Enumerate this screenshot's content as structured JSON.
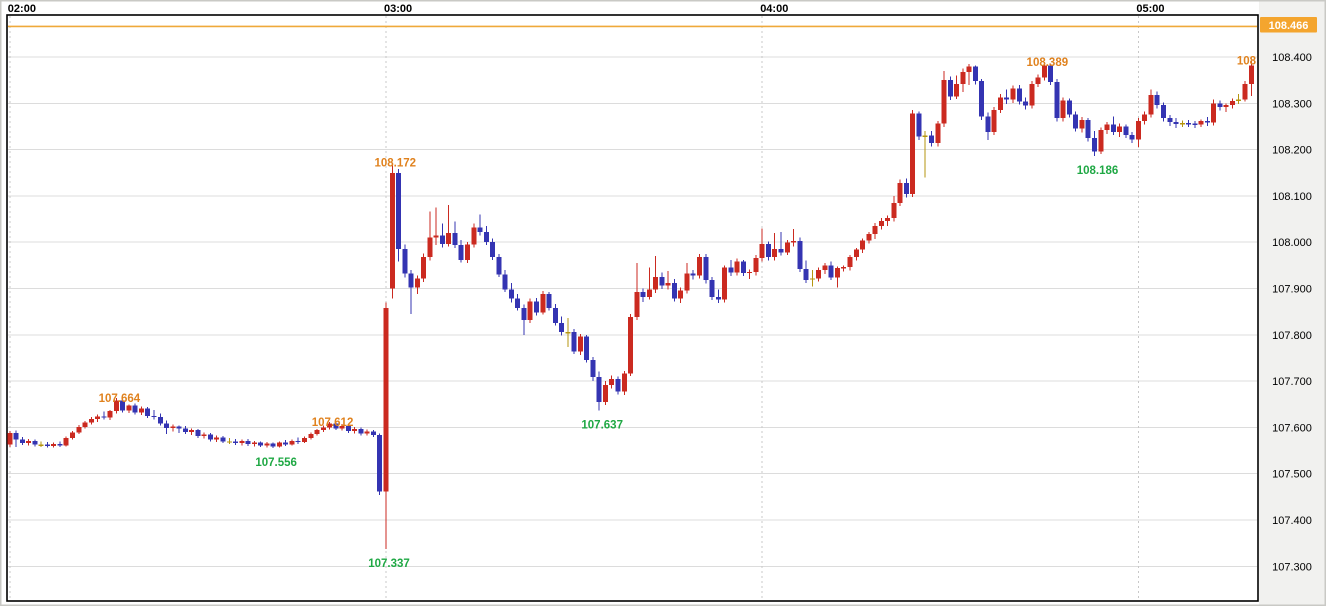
{
  "chart": {
    "current_price_label": "108.466",
    "clipped_label": "108"
  },
  "chart_data": {
    "type": "candlestick",
    "title": "",
    "xlabel": "",
    "ylabel": "",
    "x_axis": {
      "unit": "minutes_per_candle",
      "minutes_per_candle": 1,
      "labels": [
        {
          "t": 0,
          "text": "02:00"
        },
        {
          "t": 60,
          "text": "03:00"
        },
        {
          "t": 120,
          "text": "04:00"
        },
        {
          "t": 180,
          "text": "05:00"
        }
      ]
    },
    "y_axis": {
      "ticks": [
        "108.400",
        "108.300",
        "108.200",
        "108.100",
        "108.000",
        "107.900",
        "107.800",
        "107.700",
        "107.600",
        "107.500",
        "107.400",
        "107.300"
      ],
      "tick_values": [
        108.4,
        108.3,
        108.2,
        108.1,
        108.0,
        107.9,
        107.8,
        107.7,
        107.6,
        107.5,
        107.4,
        107.3
      ],
      "range": [
        107.25,
        108.48
      ]
    },
    "price_line": {
      "value": 108.466,
      "label": "108.466"
    },
    "annotations": [
      {
        "text": "107.664",
        "t": 17,
        "price": 107.664,
        "side": "high"
      },
      {
        "text": "107.556",
        "t": 42,
        "price": 107.556,
        "side": "low"
      },
      {
        "text": "107.612",
        "t": 51,
        "price": 107.612,
        "side": "high"
      },
      {
        "text": "107.337",
        "t": 60,
        "price": 107.337,
        "side": "low"
      },
      {
        "text": "108.172",
        "t": 61,
        "price": 108.172,
        "side": "high"
      },
      {
        "text": "107.637",
        "t": 94,
        "price": 107.637,
        "side": "low"
      },
      {
        "text": "108.389",
        "t": 165,
        "price": 108.389,
        "side": "high"
      },
      {
        "text": "108.186",
        "t": 173,
        "price": 108.186,
        "side": "low"
      },
      {
        "text": "108",
        "t": 198,
        "price": 108.392,
        "side": "high",
        "clipped": true
      }
    ],
    "colors": {
      "up": "#cb2a20",
      "down": "#3434b2",
      "doji": "#b5950f",
      "price_line": "#efa93a",
      "price_box_bg": "#f4a52e",
      "price_box_text": "#ffffff",
      "swing_high_text": "#e0821e",
      "swing_low_text": "#1fa844",
      "grid_h": "#dcdcdc",
      "grid_v": "#c8c8c8",
      "plot_border": "#000000",
      "axis_bg": "#f1f1ef",
      "outer_border": "#c9c9c5"
    },
    "candles": [
      [
        107.563,
        107.592,
        107.558,
        107.588
      ],
      [
        107.588,
        107.593,
        107.558,
        107.574
      ],
      [
        107.574,
        107.579,
        107.562,
        107.566
      ],
      [
        107.566,
        107.575,
        107.561,
        107.571
      ],
      [
        107.571,
        107.574,
        107.559,
        107.563
      ],
      [
        107.563,
        107.57,
        107.558,
        107.563
      ],
      [
        107.563,
        107.568,
        107.557,
        107.56
      ],
      [
        107.56,
        107.567,
        107.557,
        107.564
      ],
      [
        107.564,
        107.57,
        107.558,
        107.561
      ],
      [
        107.561,
        107.58,
        107.559,
        107.577
      ],
      [
        107.577,
        107.592,
        107.574,
        107.589
      ],
      [
        107.589,
        107.605,
        107.586,
        107.601
      ],
      [
        107.601,
        107.614,
        107.598,
        107.611
      ],
      [
        107.611,
        107.622,
        107.606,
        107.618
      ],
      [
        107.618,
        107.628,
        107.612,
        107.624
      ],
      [
        107.624,
        107.634,
        107.617,
        107.621
      ],
      [
        107.621,
        107.638,
        107.616,
        107.635
      ],
      [
        107.635,
        107.664,
        107.63,
        107.658
      ],
      [
        107.658,
        107.661,
        107.632,
        107.636
      ],
      [
        107.636,
        107.65,
        107.631,
        107.647
      ],
      [
        107.647,
        107.652,
        107.628,
        107.632
      ],
      [
        107.632,
        107.645,
        107.627,
        107.641
      ],
      [
        107.641,
        107.644,
        107.62,
        107.625
      ],
      [
        107.625,
        107.638,
        107.617,
        107.622
      ],
      [
        107.622,
        107.63,
        107.604,
        107.608
      ],
      [
        107.608,
        107.615,
        107.586,
        107.599
      ],
      [
        107.599,
        107.606,
        107.591,
        107.602
      ],
      [
        107.602,
        107.604,
        107.588,
        107.598
      ],
      [
        107.598,
        107.603,
        107.586,
        107.59
      ],
      [
        107.59,
        107.598,
        107.584,
        107.594
      ],
      [
        107.594,
        107.597,
        107.577,
        107.581
      ],
      [
        107.581,
        107.589,
        107.576,
        107.585
      ],
      [
        107.585,
        107.588,
        107.57,
        107.574
      ],
      [
        107.574,
        107.582,
        107.569,
        107.578
      ],
      [
        107.578,
        107.581,
        107.566,
        107.57
      ],
      [
        107.57,
        107.577,
        107.564,
        107.57
      ],
      [
        107.57,
        107.575,
        107.562,
        107.566
      ],
      [
        107.566,
        107.574,
        107.561,
        107.571
      ],
      [
        107.571,
        107.575,
        107.56,
        107.564
      ],
      [
        107.564,
        107.571,
        107.559,
        107.567
      ],
      [
        107.567,
        107.57,
        107.558,
        107.561
      ],
      [
        107.561,
        107.568,
        107.557,
        107.565
      ],
      [
        107.565,
        107.567,
        107.556,
        107.559
      ],
      [
        107.559,
        107.57,
        107.557,
        107.567
      ],
      [
        107.567,
        107.573,
        107.56,
        107.563
      ],
      [
        107.563,
        107.574,
        107.561,
        107.571
      ],
      [
        107.571,
        107.578,
        107.564,
        107.568
      ],
      [
        107.568,
        107.58,
        107.566,
        107.577
      ],
      [
        107.577,
        107.589,
        107.574,
        107.586
      ],
      [
        107.586,
        107.597,
        107.583,
        107.594
      ],
      [
        107.594,
        107.604,
        107.59,
        107.6
      ],
      [
        107.6,
        107.612,
        107.596,
        107.608
      ],
      [
        107.608,
        107.611,
        107.594,
        107.598
      ],
      [
        107.598,
        107.607,
        107.593,
        107.603
      ],
      [
        107.603,
        107.606,
        107.588,
        107.592
      ],
      [
        107.592,
        107.601,
        107.587,
        107.597
      ],
      [
        107.597,
        107.6,
        107.583,
        107.587
      ],
      [
        107.587,
        107.595,
        107.582,
        107.591
      ],
      [
        107.591,
        107.594,
        107.579,
        107.584
      ],
      [
        107.584,
        107.587,
        107.454,
        107.462
      ],
      [
        107.462,
        107.87,
        107.337,
        107.858
      ],
      [
        107.9,
        108.172,
        107.878,
        108.15
      ],
      [
        108.15,
        108.158,
        107.958,
        107.985
      ],
      [
        107.985,
        107.995,
        107.924,
        107.932
      ],
      [
        107.932,
        107.94,
        107.845,
        107.902
      ],
      [
        107.902,
        107.928,
        107.888,
        107.922
      ],
      [
        107.922,
        107.976,
        107.914,
        107.968
      ],
      [
        107.968,
        108.066,
        107.96,
        108.01
      ],
      [
        108.01,
        108.075,
        107.994,
        108.014
      ],
      [
        108.014,
        108.04,
        107.989,
        107.996
      ],
      [
        107.996,
        108.08,
        107.991,
        108.02
      ],
      [
        108.02,
        108.045,
        107.988,
        107.994
      ],
      [
        107.994,
        108.005,
        107.956,
        107.962
      ],
      [
        107.962,
        108.0,
        107.955,
        107.995
      ],
      [
        107.995,
        108.04,
        107.989,
        108.032
      ],
      [
        108.032,
        108.06,
        108.014,
        108.022
      ],
      [
        108.022,
        108.035,
        107.994,
        108.0
      ],
      [
        108.0,
        108.008,
        107.962,
        107.968
      ],
      [
        107.968,
        107.975,
        107.925,
        107.93
      ],
      [
        107.93,
        107.94,
        107.892,
        107.898
      ],
      [
        107.898,
        107.912,
        107.87,
        107.878
      ],
      [
        107.878,
        107.888,
        107.852,
        107.858
      ],
      [
        107.858,
        107.865,
        107.8,
        107.832
      ],
      [
        107.832,
        107.878,
        107.826,
        107.872
      ],
      [
        107.872,
        107.88,
        107.842,
        107.848
      ],
      [
        107.848,
        107.895,
        107.844,
        107.888
      ],
      [
        107.888,
        107.892,
        107.852,
        107.858
      ],
      [
        107.858,
        107.866,
        107.82,
        107.826
      ],
      [
        107.826,
        107.84,
        107.799,
        107.806
      ],
      [
        107.806,
        107.836,
        107.774,
        107.806
      ],
      [
        107.806,
        107.812,
        107.758,
        107.764
      ],
      [
        107.764,
        107.802,
        107.756,
        107.796
      ],
      [
        107.796,
        107.8,
        107.74,
        107.746
      ],
      [
        107.746,
        107.752,
        107.7,
        107.709
      ],
      [
        107.709,
        107.721,
        107.637,
        107.655
      ],
      [
        107.655,
        107.7,
        107.648,
        107.692
      ],
      [
        107.692,
        107.712,
        107.684,
        107.705
      ],
      [
        107.705,
        107.71,
        107.671,
        107.678
      ],
      [
        107.678,
        107.722,
        107.67,
        107.716
      ],
      [
        107.716,
        107.845,
        107.711,
        107.838
      ],
      [
        107.838,
        107.955,
        107.832,
        107.892
      ],
      [
        107.892,
        107.9,
        107.871,
        107.882
      ],
      [
        107.882,
        107.945,
        107.876,
        107.898
      ],
      [
        107.898,
        107.97,
        107.89,
        107.925
      ],
      [
        107.925,
        107.935,
        107.899,
        107.906
      ],
      [
        107.906,
        107.938,
        107.898,
        107.912
      ],
      [
        107.912,
        107.92,
        107.872,
        107.878
      ],
      [
        107.878,
        107.902,
        107.869,
        107.896
      ],
      [
        107.896,
        107.955,
        107.889,
        107.932
      ],
      [
        107.932,
        107.94,
        107.919,
        107.928
      ],
      [
        107.928,
        107.975,
        107.922,
        107.968
      ],
      [
        107.968,
        107.975,
        107.911,
        107.918
      ],
      [
        107.918,
        107.925,
        107.875,
        107.882
      ],
      [
        107.882,
        107.898,
        107.869,
        107.876
      ],
      [
        107.876,
        107.95,
        107.87,
        107.945
      ],
      [
        107.945,
        107.962,
        107.927,
        107.935
      ],
      [
        107.935,
        107.965,
        107.928,
        107.958
      ],
      [
        107.958,
        107.962,
        107.927,
        107.933
      ],
      [
        107.933,
        107.941,
        107.92,
        107.936
      ],
      [
        107.936,
        107.972,
        107.928,
        107.966
      ],
      [
        107.966,
        108.03,
        107.958,
        107.996
      ],
      [
        107.996,
        108.002,
        107.961,
        107.968
      ],
      [
        107.968,
        108.02,
        107.96,
        107.985
      ],
      [
        107.985,
        108.022,
        107.971,
        107.978
      ],
      [
        107.978,
        108.005,
        107.972,
        107.999
      ],
      [
        107.999,
        108.028,
        107.991,
        108.003
      ],
      [
        108.003,
        108.01,
        107.936,
        107.942
      ],
      [
        107.942,
        107.96,
        107.912,
        107.918
      ],
      [
        107.922,
        107.94,
        107.904,
        107.922
      ],
      [
        107.922,
        107.945,
        107.915,
        107.94
      ],
      [
        107.94,
        107.955,
        107.931,
        107.95
      ],
      [
        107.95,
        107.958,
        107.918,
        107.924
      ],
      [
        107.924,
        107.948,
        107.902,
        107.944
      ],
      [
        107.944,
        107.95,
        107.937,
        107.946
      ],
      [
        107.946,
        107.972,
        107.939,
        107.968
      ],
      [
        107.968,
        107.988,
        107.961,
        107.984
      ],
      [
        107.984,
        108.008,
        107.977,
        108.004
      ],
      [
        108.004,
        108.022,
        107.997,
        108.018
      ],
      [
        108.018,
        108.042,
        108.007,
        108.035
      ],
      [
        108.035,
        108.052,
        108.027,
        108.046
      ],
      [
        108.046,
        108.058,
        108.035,
        108.052
      ],
      [
        108.052,
        108.1,
        108.045,
        108.085
      ],
      [
        108.085,
        108.135,
        108.078,
        108.128
      ],
      [
        108.128,
        108.138,
        108.097,
        108.104
      ],
      [
        108.104,
        108.285,
        108.098,
        108.278
      ],
      [
        108.278,
        108.282,
        108.221,
        108.228
      ],
      [
        108.23,
        108.24,
        108.14,
        108.23
      ],
      [
        108.23,
        108.24,
        108.207,
        108.214
      ],
      [
        108.214,
        108.262,
        108.207,
        108.256
      ],
      [
        108.256,
        108.37,
        108.249,
        108.35
      ],
      [
        108.35,
        108.358,
        108.307,
        108.315
      ],
      [
        108.315,
        108.36,
        108.309,
        108.342
      ],
      [
        108.342,
        108.375,
        108.324,
        108.368
      ],
      [
        108.368,
        108.385,
        108.34,
        108.38
      ],
      [
        108.38,
        108.382,
        108.341,
        108.348
      ],
      [
        108.348,
        108.352,
        108.264,
        108.272
      ],
      [
        108.272,
        108.28,
        108.221,
        108.238
      ],
      [
        108.238,
        108.292,
        108.231,
        108.286
      ],
      [
        108.286,
        108.32,
        108.279,
        108.312
      ],
      [
        108.312,
        108.33,
        108.299,
        108.308
      ],
      [
        108.308,
        108.338,
        108.301,
        108.332
      ],
      [
        108.332,
        108.34,
        108.297,
        108.304
      ],
      [
        108.304,
        108.312,
        108.287,
        108.295
      ],
      [
        108.295,
        108.348,
        108.289,
        108.342
      ],
      [
        108.342,
        108.362,
        108.335,
        108.356
      ],
      [
        108.356,
        108.389,
        108.349,
        108.382
      ],
      [
        108.382,
        108.386,
        108.339,
        108.346
      ],
      [
        108.346,
        108.352,
        108.261,
        108.268
      ],
      [
        108.268,
        108.312,
        108.261,
        108.306
      ],
      [
        108.306,
        108.31,
        108.269,
        108.276
      ],
      [
        108.276,
        108.282,
        108.239,
        108.246
      ],
      [
        108.246,
        108.27,
        108.237,
        108.264
      ],
      [
        108.264,
        108.268,
        108.217,
        108.225
      ],
      [
        108.225,
        108.24,
        108.186,
        108.196
      ],
      [
        108.196,
        108.248,
        108.19,
        108.242
      ],
      [
        108.242,
        108.26,
        108.234,
        108.254
      ],
      [
        108.254,
        108.272,
        108.231,
        108.238
      ],
      [
        108.238,
        108.256,
        108.227,
        108.25
      ],
      [
        108.25,
        108.254,
        108.225,
        108.232
      ],
      [
        108.232,
        108.238,
        108.214,
        108.222
      ],
      [
        108.222,
        108.268,
        108.206,
        108.262
      ],
      [
        108.262,
        108.282,
        108.254,
        108.276
      ],
      [
        108.276,
        108.33,
        108.269,
        108.318
      ],
      [
        108.318,
        108.325,
        108.289,
        108.296
      ],
      [
        108.296,
        108.302,
        108.261,
        108.268
      ],
      [
        108.268,
        108.275,
        108.251,
        108.26
      ],
      [
        108.26,
        108.268,
        108.247,
        108.255
      ],
      [
        108.257,
        108.263,
        108.249,
        108.257
      ],
      [
        108.257,
        108.264,
        108.249,
        108.256
      ],
      [
        108.256,
        108.262,
        108.247,
        108.254
      ],
      [
        108.254,
        108.265,
        108.249,
        108.262
      ],
      [
        108.262,
        108.27,
        108.251,
        108.258
      ],
      [
        108.258,
        108.308,
        108.252,
        108.3
      ],
      [
        108.3,
        108.306,
        108.284,
        108.292
      ],
      [
        108.292,
        108.3,
        108.281,
        108.296
      ],
      [
        108.296,
        108.31,
        108.289,
        108.305
      ],
      [
        108.308,
        108.32,
        108.299,
        108.308
      ],
      [
        108.308,
        108.348,
        108.304,
        108.342
      ],
      [
        108.342,
        108.392,
        108.316,
        108.382
      ]
    ]
  }
}
